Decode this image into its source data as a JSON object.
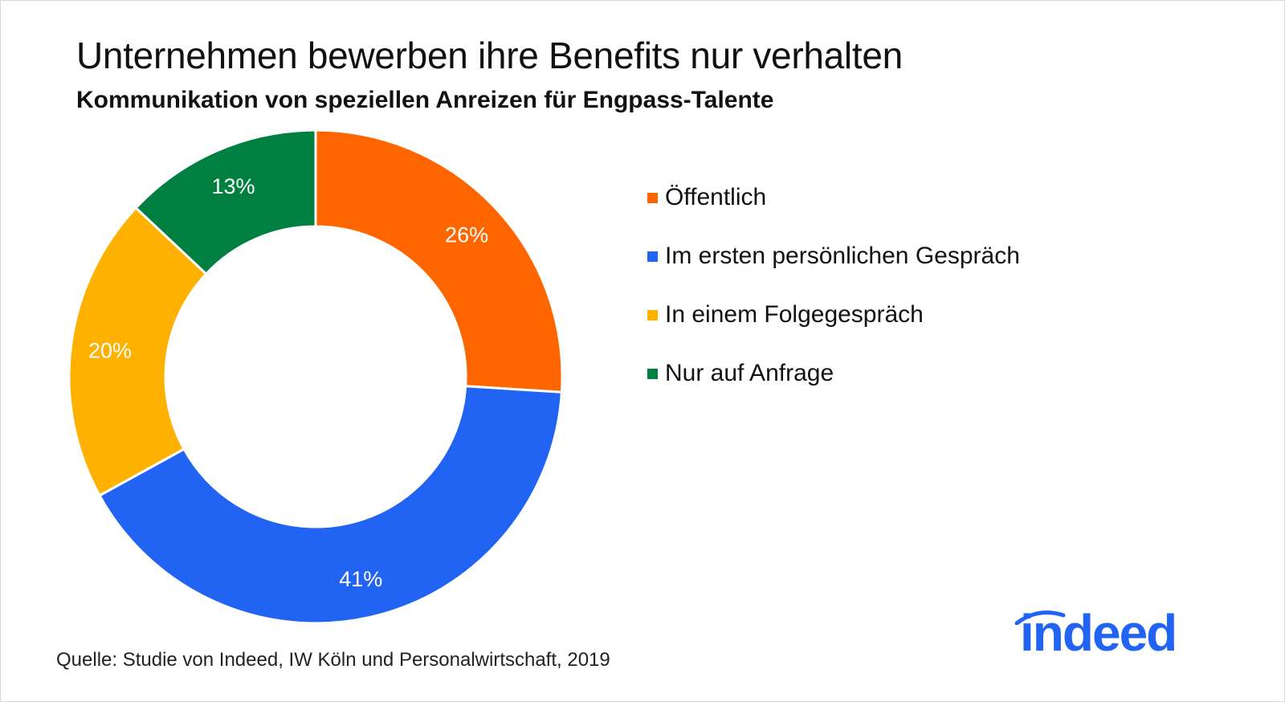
{
  "title": "Unternehmen bewerben ihre Benefits nur verhalten",
  "subtitle": "Kommunikation von speziellen Anreizen für Engpass-Talente",
  "source": "Quelle: Studie von Indeed, IW Köln und Personalwirtschaft, 2019",
  "logo_text": "indeed",
  "colors": {
    "brand": "#2164f3"
  },
  "chart_data": {
    "type": "pie",
    "variant": "donut",
    "legend_position": "right",
    "categories": [
      "Öffentlich",
      "Im ersten persönlichen Gespräch",
      "In einem Folgegespräch",
      "Nur auf Anfrage"
    ],
    "values": [
      26,
      41,
      20,
      13
    ],
    "labels": [
      "26%",
      "41%",
      "20%",
      "13%"
    ],
    "colors": [
      "#ff6600",
      "#2164f3",
      "#ffb100",
      "#008040"
    ]
  }
}
